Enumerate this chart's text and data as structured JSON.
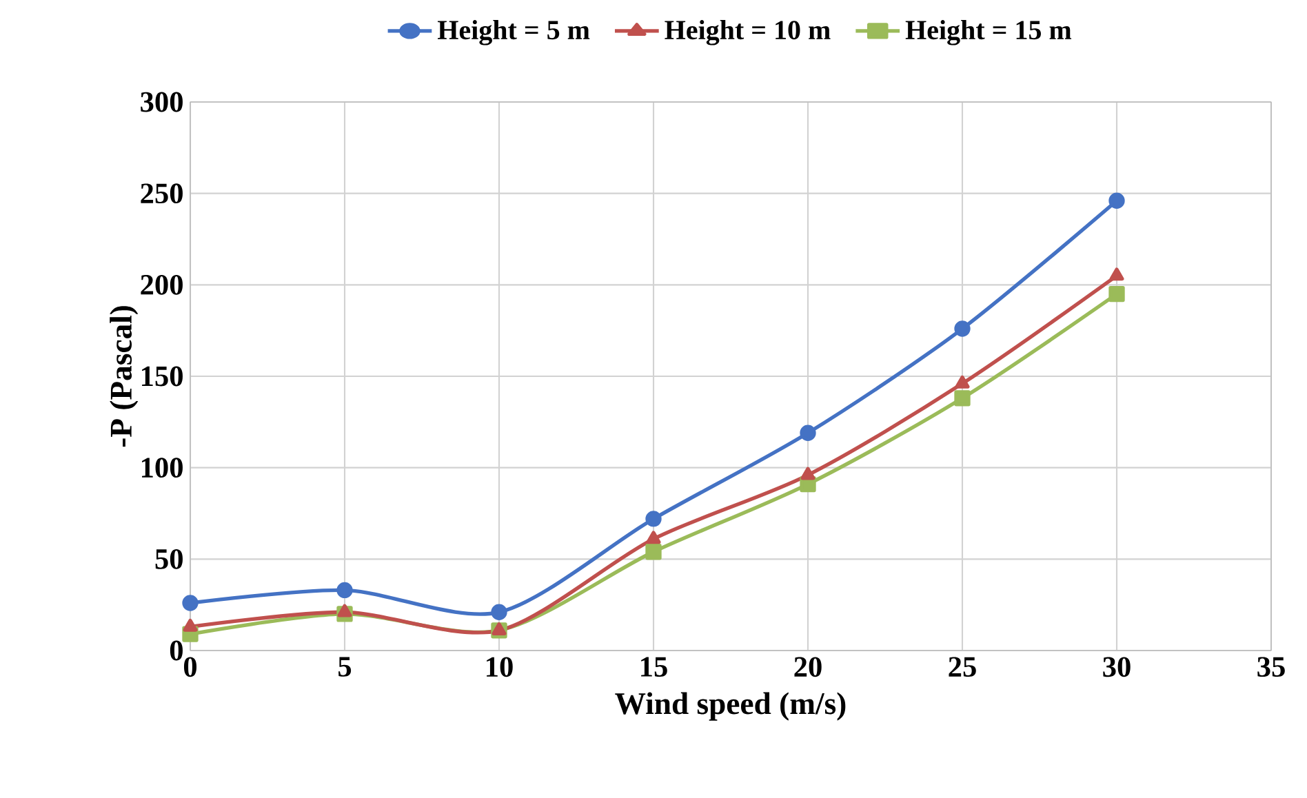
{
  "chart_data": {
    "type": "line",
    "xlabel": "Wind speed (m/s)",
    "ylabel": "-P (Pascal)",
    "x": [
      0,
      5,
      10,
      15,
      20,
      25,
      30
    ],
    "series": [
      {
        "name": "Height = 5 m",
        "color": "#4472c4",
        "marker": "circle",
        "values": [
          26,
          33,
          21,
          72,
          119,
          176,
          246
        ]
      },
      {
        "name": "Height = 10 m",
        "color": "#c0504d",
        "marker": "triangle",
        "values": [
          13,
          21,
          11,
          61,
          96,
          146,
          205
        ]
      },
      {
        "name": "Height = 15 m",
        "color": "#9bbb59",
        "marker": "square",
        "values": [
          9,
          20,
          11,
          54,
          91,
          138,
          195
        ]
      }
    ],
    "xlim": [
      0,
      35
    ],
    "xticks": [
      0,
      5,
      10,
      15,
      20,
      25,
      30,
      35
    ],
    "ylim": [
      0,
      300
    ],
    "yticks": [
      0,
      50,
      100,
      150,
      200,
      250,
      300
    ],
    "grid": true,
    "legend": "top",
    "line_style": "solid"
  }
}
